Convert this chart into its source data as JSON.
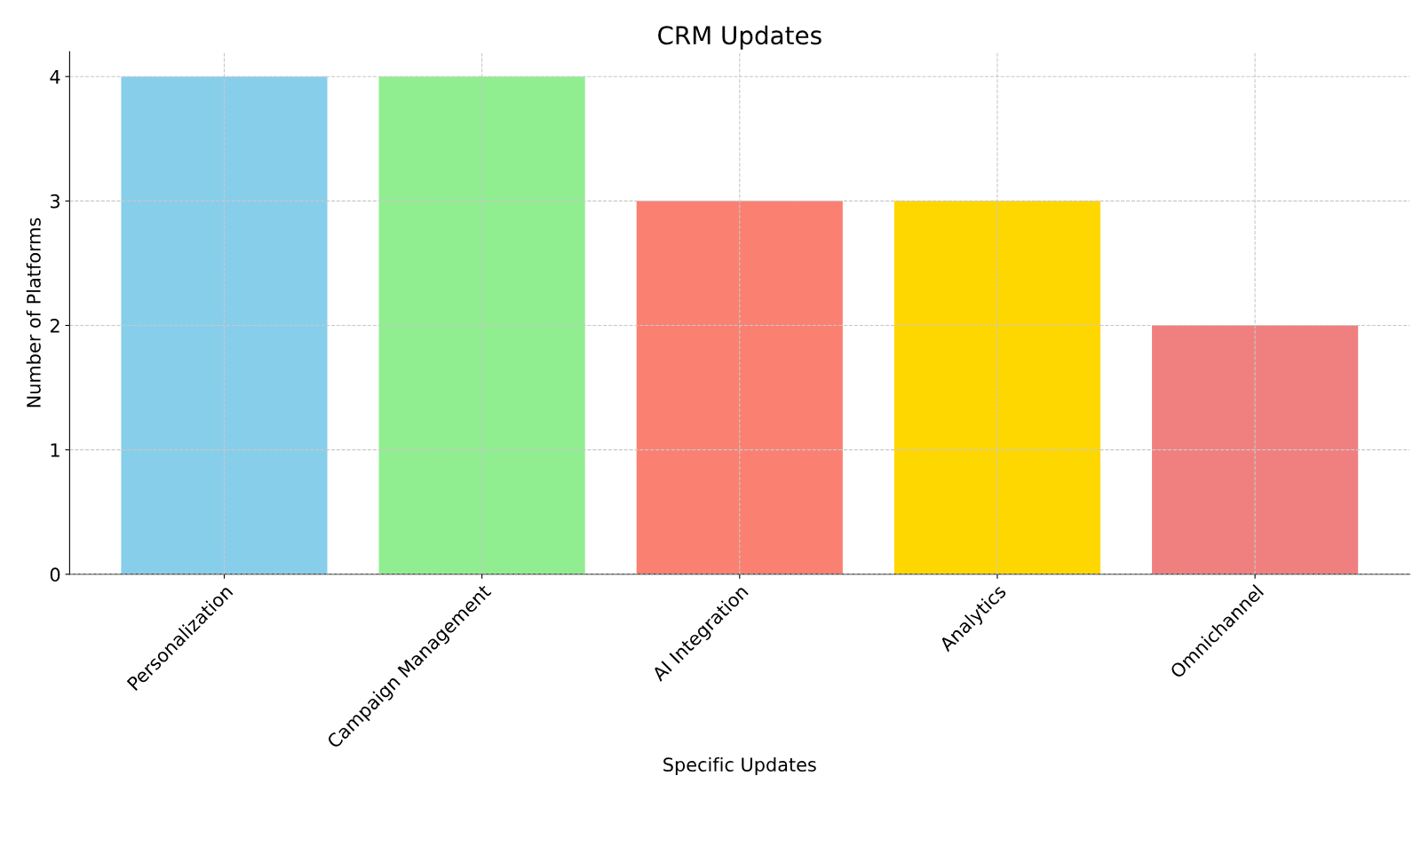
{
  "chart_data": {
    "type": "bar",
    "title": "CRM Updates",
    "xlabel": "Specific Updates",
    "ylabel": "Number of Platforms",
    "categories": [
      "Personalization",
      "Campaign Management",
      "AI Integration",
      "Analytics",
      "Omnichannel"
    ],
    "values": [
      4,
      4,
      3,
      3,
      2
    ],
    "colors": [
      "#87ceeb",
      "#90ee90",
      "#fa8072",
      "#ffd700",
      "#f08080"
    ],
    "ylim": [
      0,
      4.2
    ],
    "yticks": [
      0,
      1,
      2,
      3,
      4
    ],
    "grid": true
  }
}
